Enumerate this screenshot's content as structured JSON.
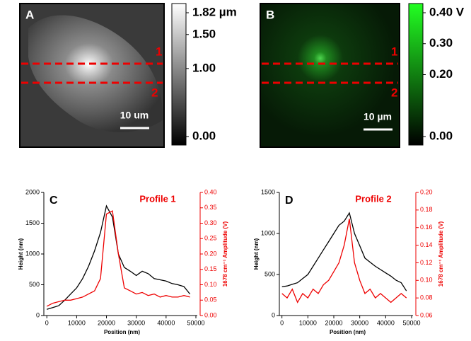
{
  "images": [
    {
      "label": "A",
      "scale_bar": "10 um",
      "lines": [
        "1",
        "2"
      ],
      "colorbar": {
        "lim": [
          0,
          1.82
        ],
        "ticks": [
          {
            "value": 1.82,
            "label": "1.82 µm"
          },
          {
            "value": 1.5,
            "label": "1.50"
          },
          {
            "value": 1,
            "label": "1.00"
          },
          {
            "value": 0,
            "label": "0.00"
          }
        ]
      }
    },
    {
      "label": "B",
      "scale_bar": "10 µm",
      "lines": [
        "1",
        "2"
      ],
      "colorbar": {
        "lim": [
          0,
          0.4
        ],
        "ticks": [
          {
            "value": 0.4,
            "label": "0.40 V"
          },
          {
            "value": 0.3,
            "label": "0.30"
          },
          {
            "value": 0.2,
            "label": "0.20"
          },
          {
            "value": 0,
            "label": "0.00"
          }
        ]
      }
    }
  ],
  "chart_data": [
    {
      "type": "line",
      "label": "C",
      "title": "Profile 1",
      "x_label": "Position (nm)",
      "y_label": "Height (nm)",
      "y2_label": "1678 cm⁻¹ Amplitude (V)",
      "x": [
        0,
        2000,
        4000,
        6000,
        8000,
        10000,
        12000,
        14000,
        16000,
        18000,
        20000,
        22000,
        24000,
        26000,
        28000,
        30000,
        32000,
        34000,
        36000,
        38000,
        40000,
        42000,
        44000,
        46000,
        48000
      ],
      "xlim": [
        -1000,
        50000
      ],
      "xticks": [
        0,
        10000,
        20000,
        30000,
        40000,
        50000
      ],
      "ylim": [
        0,
        2000
      ],
      "yticks": [
        0,
        500,
        1000,
        1500,
        2000
      ],
      "y2lim": [
        0,
        0.4
      ],
      "y2ticks": [
        {
          "value": 0,
          "label": "0.00"
        },
        {
          "value": 0.05,
          "label": "0.05"
        },
        {
          "value": 0.1,
          "label": "0.10"
        },
        {
          "value": 0.15,
          "label": "0.15"
        },
        {
          "value": 0.2,
          "label": "0.20"
        },
        {
          "value": 0.25,
          "label": "0.25"
        },
        {
          "value": 0.3,
          "label": "0.30"
        },
        {
          "value": 0.35,
          "label": "0.35"
        },
        {
          "value": 0.4,
          "label": "0.40"
        }
      ],
      "series": [
        {
          "color": "#000000",
          "values": [
            100,
            130,
            160,
            250,
            350,
            450,
            600,
            800,
            1050,
            1350,
            1780,
            1600,
            1000,
            780,
            720,
            650,
            720,
            680,
            600,
            580,
            560,
            520,
            500,
            470,
            350
          ]
        },
        {
          "color": "#ee0000",
          "axis": "y2",
          "values": [
            0.03,
            0.04,
            0.045,
            0.05,
            0.05,
            0.055,
            0.06,
            0.07,
            0.08,
            0.12,
            0.33,
            0.34,
            0.2,
            0.09,
            0.08,
            0.07,
            0.075,
            0.065,
            0.07,
            0.06,
            0.065,
            0.06,
            0.06,
            0.065,
            0.06
          ]
        }
      ]
    },
    {
      "type": "line",
      "label": "D",
      "title": "Profile 2",
      "x_label": "Position (nm)",
      "y_label": "Height (nm)",
      "y2_label": "1678 cm⁻¹ Amplitude (V)",
      "x": [
        0,
        2000,
        4000,
        6000,
        8000,
        10000,
        12000,
        14000,
        16000,
        18000,
        20000,
        22000,
        24000,
        26000,
        28000,
        30000,
        32000,
        34000,
        36000,
        38000,
        40000,
        42000,
        44000,
        46000,
        48000
      ],
      "xlim": [
        -1000,
        50000
      ],
      "xticks": [
        0,
        10000,
        20000,
        30000,
        40000,
        50000
      ],
      "ylim": [
        0,
        1500
      ],
      "yticks": [
        0,
        500,
        1000,
        1500
      ],
      "y2lim": [
        0.06,
        0.2
      ],
      "y2ticks": [
        {
          "value": 0.06,
          "label": "0.06"
        },
        {
          "value": 0.08,
          "label": "0.08"
        },
        {
          "value": 0.1,
          "label": "0.10"
        },
        {
          "value": 0.12,
          "label": "0.12"
        },
        {
          "value": 0.14,
          "label": "0.14"
        },
        {
          "value": 0.16,
          "label": "0.16"
        },
        {
          "value": 0.18,
          "label": "0.18"
        },
        {
          "value": 0.2,
          "label": "0.20"
        }
      ],
      "series": [
        {
          "color": "#000000",
          "values": [
            350,
            360,
            380,
            400,
            450,
            500,
            600,
            700,
            800,
            900,
            1000,
            1100,
            1150,
            1250,
            1000,
            850,
            700,
            650,
            600,
            560,
            520,
            480,
            430,
            400,
            300
          ]
        },
        {
          "color": "#ee0000",
          "axis": "y2",
          "values": [
            0.085,
            0.08,
            0.09,
            0.075,
            0.085,
            0.08,
            0.09,
            0.085,
            0.095,
            0.1,
            0.11,
            0.12,
            0.14,
            0.17,
            0.12,
            0.1,
            0.085,
            0.09,
            0.08,
            0.085,
            0.08,
            0.075,
            0.08,
            0.085,
            0.08
          ]
        }
      ]
    }
  ]
}
